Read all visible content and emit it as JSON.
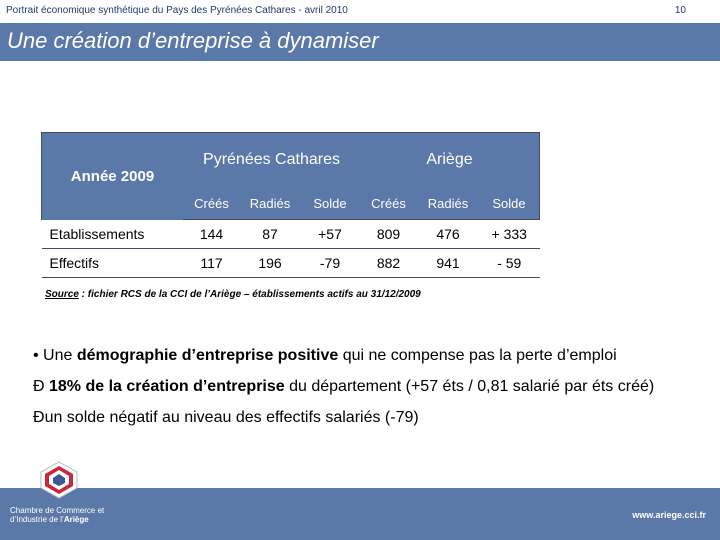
{
  "header": {
    "doc_title": "Portrait économique synthétique du Pays des Pyrénées Cathares - avril 2010",
    "page_number": "10"
  },
  "slide": {
    "title": "Une création d’entreprise à dynamiser"
  },
  "table": {
    "corner": "Année 2009",
    "groups": [
      "Pyrénées Cathares",
      "Ariège"
    ],
    "subheaders": [
      "Créés",
      "Radiés",
      "Solde",
      "Créés",
      "Radiés",
      "Solde"
    ],
    "rows": [
      {
        "label": "Etablissements",
        "values": [
          "144",
          "87",
          "+57",
          "809",
          "476",
          "+ 333"
        ]
      },
      {
        "label": "Effectifs",
        "values": [
          "117",
          "196",
          "-79",
          "882",
          "941",
          "- 59"
        ]
      }
    ]
  },
  "source": {
    "label": "Source",
    "text": " : fichier RCS de la CCI de l’Ariège – établissements actifs au 31/12/2009"
  },
  "bullets": {
    "b1_prefix": "• Une ",
    "b1_bold": "démographie d’entreprise positive",
    "b1_rest": " qui ne compense pas la perte d’emploi",
    "b2_marker": "Ð",
    "b2_bold": " 18% de la création d’entreprise",
    "b2_rest": " du département (+57 éts / 0,81 salarié par éts créé)",
    "b3_marker": "Ð",
    "b3_text": "un solde négatif au niveau des effectifs salariés (-79)"
  },
  "footer": {
    "org_line1": "Chambre de Commerce et",
    "org_line2": "d’Industrie de l’",
    "org_bold": "Ariège",
    "url": "www.ariege.cci.fr"
  },
  "colors": {
    "brand_blue": "#5a78a8",
    "title_text": "#ffffff",
    "header_text": "#1f3b6e"
  }
}
